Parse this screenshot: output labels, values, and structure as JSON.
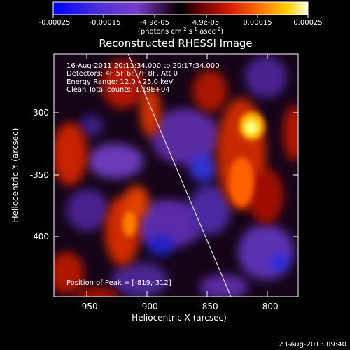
{
  "colorbar": {
    "tick_labels": [
      "-0.00025",
      "-0.00015",
      "-4.9e-05",
      "4.9e-05",
      "0.00015",
      "0.00025"
    ],
    "units_line": "(photons cm",
    "units_exp1": "-2",
    "units_mid": " s",
    "units_exp2": "-1",
    "units_end": " asec",
    "units_exp3": "-2",
    "units_close": ")"
  },
  "title": "Reconstructed RHESSI Image",
  "info": {
    "line1": "16-Aug-2011 20:11:34.000 to 20:17:34.000",
    "line2": "Detectors: 4F 5F 6F 7F 8F, Att 0",
    "line3": "Energy Range: 12.0 - 25.0 keV",
    "line4": "Clean    Total counts: 1.19E+04"
  },
  "peak_label": "Position of Peak = [-819,-312]",
  "x_axis": {
    "label": "Heliocentric X (arcsec)",
    "tick_labels": [
      "-950",
      "-900",
      "-850",
      "-800"
    ]
  },
  "y_axis": {
    "label": "Heliocentric Y (arcsec)",
    "tick_labels": [
      "-300",
      "-350",
      "-400"
    ]
  },
  "timestamp": "23-Aug-2013 09:40",
  "colors": {
    "background": "#000000",
    "foreground": "#ffffff",
    "colormap": [
      "#0000ff",
      "#7a3cc8",
      "#3a1060",
      "#000000",
      "#5a0000",
      "#c81e00",
      "#ff6a00",
      "#ffd000",
      "#ffffff"
    ]
  }
}
